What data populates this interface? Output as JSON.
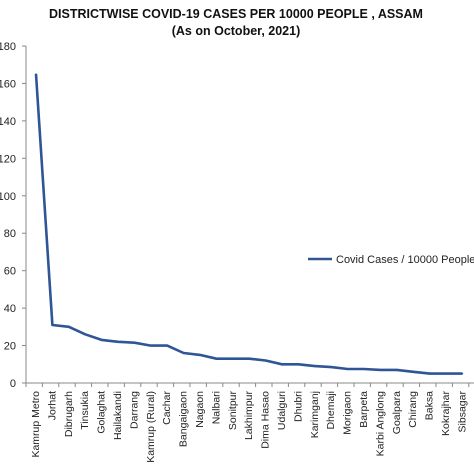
{
  "chart_data": {
    "type": "line",
    "title": "DISTRICTWISE COVID-19 CASES PER 10000 PEOPLE , ASSAM",
    "subtitle": "(As on October, 2021)",
    "xlabel": "",
    "ylabel": "",
    "ylim": [
      0,
      180
    ],
    "yticks": [
      0,
      20,
      40,
      60,
      80,
      100,
      120,
      140,
      160,
      180
    ],
    "grid": false,
    "legend_position": "right",
    "categories": [
      "Kamrup Metro",
      "Jorhat",
      "Dibrugarh",
      "Tinsukia",
      "Golaghat",
      "Hailakandi",
      "Darrang",
      "Kamrup (Rural)",
      "Cachar",
      "Bangaigaon",
      "Nagaon",
      "Nalbari",
      "Sonitpur",
      "Lakhimpur",
      "Dima Hasao",
      "Udalguri",
      "Dhubri",
      "Karimganj",
      "Dhemaji",
      "Morigaon",
      "Barpeta",
      "Karbi Anglong",
      "Goalpara",
      "Chirang",
      "Baksa",
      "Kokrajhar",
      "Sibsagar"
    ],
    "series": [
      {
        "name": "Covid Cases / 10000 People",
        "color": "#2f5597",
        "values": [
          165,
          31,
          30,
          26,
          23,
          22,
          21.5,
          20,
          20,
          16,
          15,
          13,
          13,
          13,
          12,
          10,
          10,
          9,
          8.5,
          7.5,
          7.5,
          7,
          7,
          6,
          5,
          5,
          5
        ]
      }
    ]
  }
}
